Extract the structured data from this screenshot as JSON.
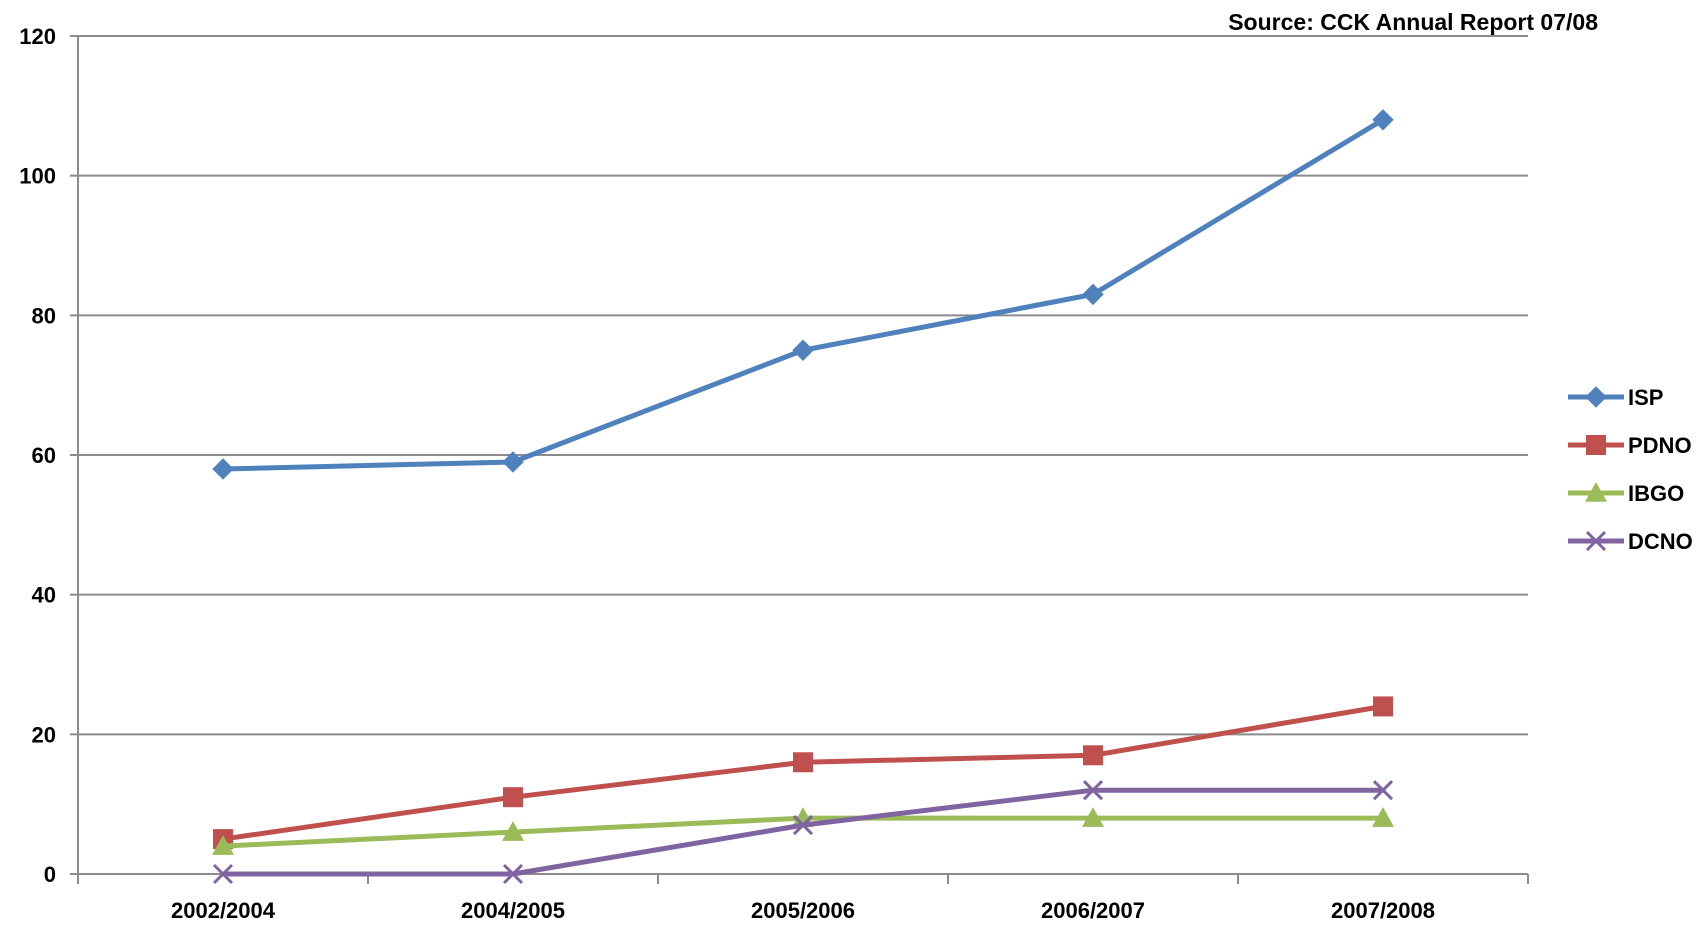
{
  "source_note": "Source: CCK Annual Report 07/08",
  "chart_data": {
    "type": "line",
    "categories": [
      "2002/2004",
      "2004/2005",
      "2005/2006",
      "2006/2007",
      "2007/2008"
    ],
    "ylim": [
      0,
      120
    ],
    "yticks": [
      0,
      20,
      40,
      60,
      80,
      100,
      120
    ],
    "grid": true,
    "legend_position": "right",
    "series": [
      {
        "name": "ISP",
        "color": "#4F81BD",
        "marker": "diamond",
        "values": [
          58,
          59,
          75,
          83,
          108
        ]
      },
      {
        "name": "PDNO",
        "color": "#C0504D",
        "marker": "square",
        "values": [
          5,
          11,
          16,
          17,
          24
        ]
      },
      {
        "name": "IBGO",
        "color": "#9BBB59",
        "marker": "triangle",
        "values": [
          4,
          6,
          8,
          8,
          8
        ]
      },
      {
        "name": "DCNO",
        "color": "#8064A2",
        "marker": "x",
        "values": [
          0,
          0,
          7,
          12,
          12
        ]
      }
    ]
  }
}
